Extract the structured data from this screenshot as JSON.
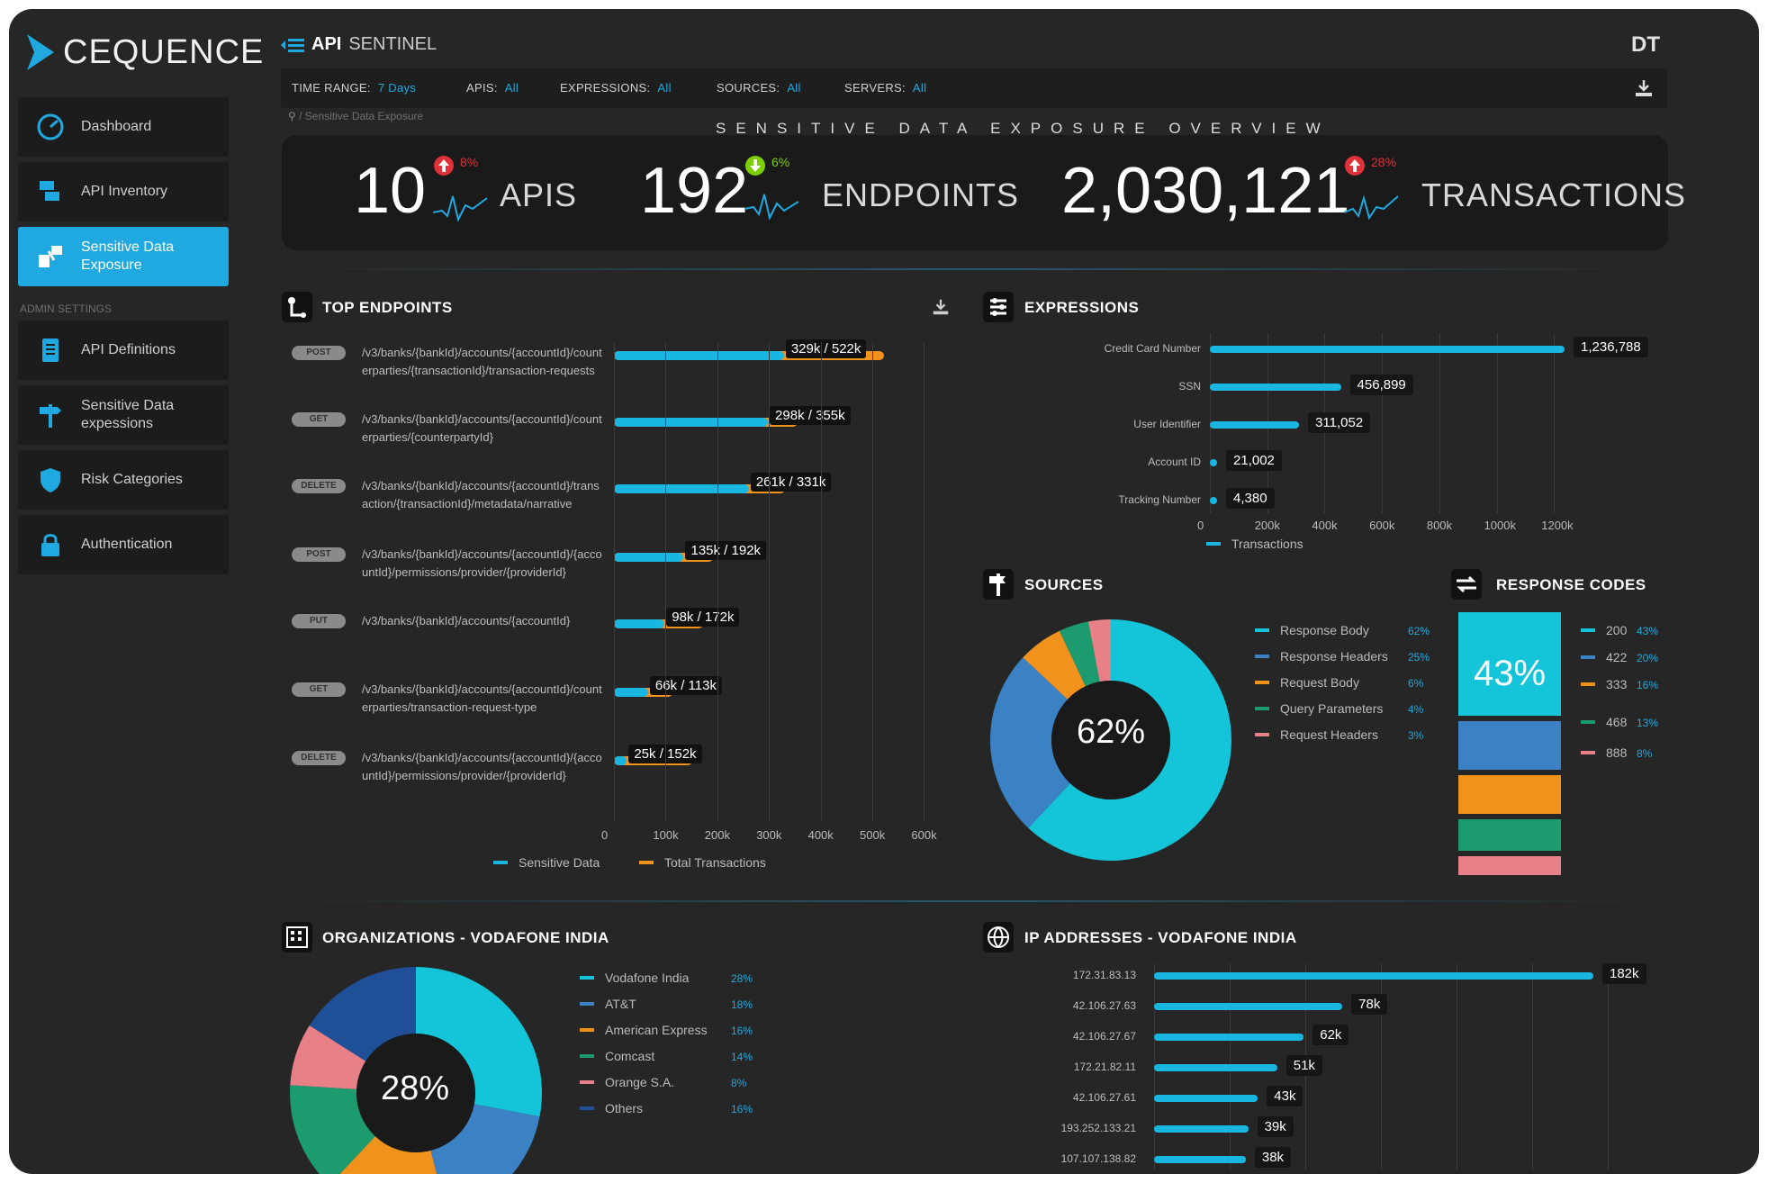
{
  "brand": {
    "name": "CEQUENCE"
  },
  "app": {
    "title_bold": "API",
    "title_rest": "SENTINEL",
    "user_initials": "DT"
  },
  "sidebar": {
    "items": [
      {
        "label": "Dashboard",
        "icon": "dashboard-gauge-icon"
      },
      {
        "label": "API Inventory",
        "icon": "inventory-icon"
      },
      {
        "label": "Sensitive Data Exposure",
        "icon": "sensitive-data-icon",
        "active": true
      },
      {
        "label": "API Definitions",
        "icon": "document-icon"
      },
      {
        "label": "Sensitive Data expessions",
        "icon": "signpost-icon"
      },
      {
        "label": "Risk Categories",
        "icon": "shield-icon"
      },
      {
        "label": "Authentication",
        "icon": "lock-icon"
      }
    ],
    "admin_label": "ADMIN SETTINGS"
  },
  "filters": {
    "time_range": {
      "label": "TIME RANGE:",
      "value": "7 Days"
    },
    "apis": {
      "label": "APIS:",
      "value": "All"
    },
    "expressions": {
      "label": "EXPRESSIONS:",
      "value": "All"
    },
    "sources": {
      "label": "SOURCES:",
      "value": "All"
    },
    "servers": {
      "label": "SERVERS:",
      "value": "All"
    }
  },
  "breadcrumb": "/ Sensitive Data Exposure",
  "section_title": "SENSITIVE DATA EXPOSURE OVERVIEW",
  "kpis": [
    {
      "value": "10",
      "label": "APIS",
      "change": "8%",
      "direction": "up",
      "color": "#e0303a"
    },
    {
      "value": "192",
      "label": "ENDPOINTS",
      "change": "6%",
      "direction": "down",
      "color": "#7ad000"
    },
    {
      "value": "2,030,121",
      "label": "TRANSACTIONS",
      "change": "28%",
      "direction": "up",
      "color": "#e0303a"
    }
  ],
  "top_endpoints": {
    "title": "TOP ENDPOINTS",
    "rows": [
      {
        "method": "POST",
        "path": "/v3/banks/{bankId}/accounts/{accountId}/counterparties/{transactionId}/transaction-requests",
        "sensitive": 329,
        "total": 522,
        "label": "329k / 522k"
      },
      {
        "method": "GET",
        "path": "/v3/banks/{bankId}/accounts/{accountId}/counterparties/{counterpartyId}",
        "sensitive": 298,
        "total": 355,
        "label": "298k / 355k"
      },
      {
        "method": "DELETE",
        "path": "/v3/banks/{bankId}/accounts/{accountId}/transaction/{transactionId}/metadata/narrative",
        "sensitive": 261,
        "total": 331,
        "label": "261k / 331k"
      },
      {
        "method": "POST",
        "path": "/v3/banks/{bankId}/accounts/{accountId}/{accountId}/permissions/provider/{providerId}",
        "sensitive": 135,
        "total": 192,
        "label": "135k / 192k"
      },
      {
        "method": "PUT",
        "path": "/v3/banks/{bankId}/accounts/{accountId}",
        "sensitive": 98,
        "total": 172,
        "label": "98k / 172k"
      },
      {
        "method": "GET",
        "path": "/v3/banks/{bankId}/accounts/{accountId}/counterparties/transaction-request-type",
        "sensitive": 66,
        "total": 113,
        "label": "66k / 113k"
      },
      {
        "method": "DELETE",
        "path": "/v3/banks/{bankId}/accounts/{accountId}/{accountId}/permissions/provider/{providerId}",
        "sensitive": 25,
        "total": 152,
        "label": "25k / 152k"
      }
    ],
    "axis_ticks": [
      "0",
      "100k",
      "200k",
      "300k",
      "400k",
      "500k",
      "600k"
    ],
    "legend": [
      {
        "name": "Sensitive Data",
        "color": "#19b6e2"
      },
      {
        "name": "Total Transactions",
        "color": "#f0921c"
      }
    ]
  },
  "expressions": {
    "title": "EXPRESSIONS",
    "rows": [
      {
        "name": "Credit Card Number",
        "value": 1236788,
        "label": "1,236,788"
      },
      {
        "name": "SSN",
        "value": 456899,
        "label": "456,899"
      },
      {
        "name": "User Identifier",
        "value": 311052,
        "label": "311,052"
      },
      {
        "name": "Account ID",
        "value": 21002,
        "label": "21,002"
      },
      {
        "name": "Tracking Number",
        "value": 4380,
        "label": "4,380"
      }
    ],
    "axis_ticks": [
      "0",
      "200k",
      "400k",
      "600k",
      "800k",
      "1000k",
      "1200k"
    ],
    "legend": "Transactions"
  },
  "sources": {
    "title": "SOURCES",
    "center": "62%",
    "items": [
      {
        "name": "Response Body",
        "pct": "62%",
        "value": 62,
        "color": "#14c4d8"
      },
      {
        "name": "Response Headers",
        "pct": "25%",
        "value": 25,
        "color": "#3a82c4"
      },
      {
        "name": "Request Body",
        "pct": "6%",
        "value": 6,
        "color": "#f0921c"
      },
      {
        "name": "Query Parameters",
        "pct": "4%",
        "value": 4,
        "color": "#1b9b6e"
      },
      {
        "name": "Request Headers",
        "pct": "3%",
        "value": 3,
        "color": "#e88088"
      }
    ]
  },
  "response_codes": {
    "title": "RESPONSE CODES",
    "center": "43%",
    "items": [
      {
        "code": "200",
        "pct": "43%",
        "value": 43,
        "color": "#14c4d8"
      },
      {
        "code": "422",
        "pct": "20%",
        "value": 20,
        "color": "#3a82c4"
      },
      {
        "code": "333",
        "pct": "16%",
        "value": 16,
        "color": "#f0921c"
      },
      {
        "code": "468",
        "pct": "13%",
        "value": 13,
        "color": "#1b9b6e"
      },
      {
        "code": "888",
        "pct": "8%",
        "value": 8,
        "color": "#e88088"
      }
    ]
  },
  "organizations": {
    "title": "ORGANIZATIONS - VODAFONE INDIA",
    "center": "28%",
    "items": [
      {
        "name": "Vodafone India",
        "pct": "28%",
        "value": 28,
        "color": "#14c4d8"
      },
      {
        "name": "AT&T",
        "pct": "18%",
        "value": 18,
        "color": "#3a82c4"
      },
      {
        "name": "American Express",
        "pct": "16%",
        "value": 16,
        "color": "#f0921c"
      },
      {
        "name": "Comcast",
        "pct": "14%",
        "value": 14,
        "color": "#1b9b6e"
      },
      {
        "name": "Orange S.A.",
        "pct": "8%",
        "value": 8,
        "color": "#e88088"
      },
      {
        "name": "Others",
        "pct": "16%",
        "value": 16,
        "color": "#1f4f96"
      }
    ]
  },
  "ip_addresses": {
    "title": "IP ADDRESSES - VODAFONE INDIA",
    "rows": [
      {
        "ip": "172.31.83.13",
        "value": 182,
        "label": "182k"
      },
      {
        "ip": "42.106.27.63",
        "value": 78,
        "label": "78k"
      },
      {
        "ip": "42.106.27.67",
        "value": 62,
        "label": "62k"
      },
      {
        "ip": "172.21.82.11",
        "value": 51,
        "label": "51k"
      },
      {
        "ip": "42.106.27.61",
        "value": 43,
        "label": "43k"
      },
      {
        "ip": "193.252.133.21",
        "value": 39,
        "label": "39k"
      },
      {
        "ip": "107.107.138.82",
        "value": 38,
        "label": "38k"
      }
    ]
  }
}
